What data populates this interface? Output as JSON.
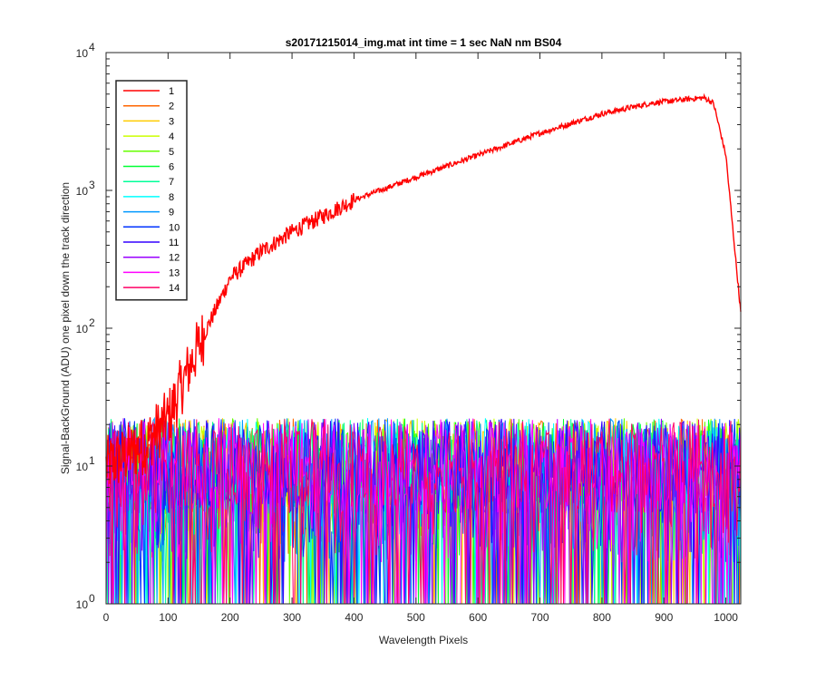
{
  "chart_data": {
    "type": "line",
    "title": "s20171215014_img.mat int time = 1 sec  NaN nm BS04",
    "xlabel": "Wavelength Pixels",
    "ylabel": "Signal-BackGround (ADU) one pixel down the track direction",
    "xlim": [
      0,
      1024
    ],
    "ylim": [
      1,
      10000
    ],
    "yscale": "log",
    "grid": false,
    "legend_position": "top-left",
    "x_ticks": [
      "0",
      "100",
      "200",
      "300",
      "400",
      "500",
      "600",
      "700",
      "800",
      "900",
      "1000"
    ],
    "y_tick_mantissa": "10",
    "y_tick_exponents": [
      "0",
      "1",
      "2",
      "3",
      "4"
    ],
    "series": [
      {
        "name": "1",
        "color": "#ff0000",
        "x": [
          0,
          60,
          100,
          140,
          200,
          250,
          300,
          400,
          500,
          600,
          700,
          800,
          880,
          940,
          965,
          980,
          1000,
          1024
        ],
        "y": [
          10,
          14,
          22,
          60,
          230,
          360,
          500,
          850,
          1250,
          1800,
          2600,
          3600,
          4300,
          4600,
          4700,
          4300,
          1800,
          130
        ]
      },
      {
        "name": "2",
        "color": "#ff6600",
        "noise": {
          "median": 10,
          "max": 35
        }
      },
      {
        "name": "3",
        "color": "#ffcc00",
        "noise": {
          "median": 10,
          "max": 35
        }
      },
      {
        "name": "4",
        "color": "#ccff00",
        "noise": {
          "median": 10,
          "max": 35
        }
      },
      {
        "name": "5",
        "color": "#66ff00",
        "noise": {
          "median": 10,
          "max": 35
        }
      },
      {
        "name": "6",
        "color": "#00ff33",
        "noise": {
          "median": 10,
          "max": 35
        }
      },
      {
        "name": "7",
        "color": "#00ff99",
        "noise": {
          "median": 10,
          "max": 35
        }
      },
      {
        "name": "8",
        "color": "#00ffff",
        "noise": {
          "median": 10,
          "max": 35
        }
      },
      {
        "name": "9",
        "color": "#0099ff",
        "noise": {
          "median": 10,
          "max": 35
        }
      },
      {
        "name": "10",
        "color": "#0033ff",
        "noise": {
          "median": 10,
          "max": 35
        }
      },
      {
        "name": "11",
        "color": "#3300ff",
        "noise": {
          "median": 10,
          "max": 35
        }
      },
      {
        "name": "12",
        "color": "#9900ff",
        "noise": {
          "median": 10,
          "max": 35
        }
      },
      {
        "name": "13",
        "color": "#ff00ff",
        "noise": {
          "median": 10,
          "max": 35
        }
      },
      {
        "name": "14",
        "color": "#ff0066",
        "noise": {
          "median": 10,
          "max": 35
        }
      }
    ]
  }
}
